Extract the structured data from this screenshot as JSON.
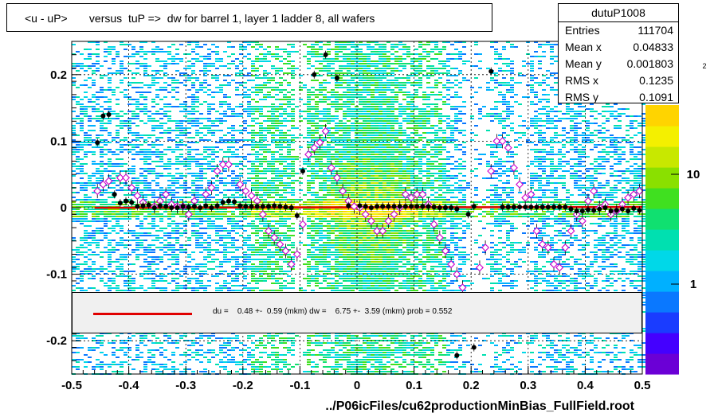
{
  "title": "<u - uP>       versus  tuP =>  dw for barrel 1, layer 1 ladder 8, all wafers",
  "stats": {
    "name": "dutuP1008",
    "rows": [
      {
        "k": "Entries",
        "v": "111704"
      },
      {
        "k": "Mean x",
        "v": "0.04833"
      },
      {
        "k": "Mean y",
        "v": "0.001803"
      },
      {
        "k": "RMS x",
        "v": "0.1235"
      },
      {
        "k": "RMS y",
        "v": "0.1091"
      }
    ]
  },
  "fit_text": "du =    0.48 +-  0.59 (mkm) dw =    6.75 +-  3.59 (mkm) prob = 0.552",
  "x_title": "../P06icFiles/cu62productionMinBias_FullField.root",
  "colors": {
    "fit": "#e00000",
    "profile": "#000000",
    "markers": "#cc00cc"
  },
  "chart_data": {
    "type": "heatmap",
    "xlim": [
      -0.5,
      0.5
    ],
    "ylim": [
      -0.25,
      0.25
    ],
    "x_ticks": [
      "-0.5",
      "-0.4",
      "-0.3",
      "-0.2",
      "-0.1",
      "0",
      "0.1",
      "0.2",
      "0.3",
      "0.4",
      "0.5"
    ],
    "y_ticks": [
      "-0.2",
      "-0.1",
      "0",
      "0.1",
      "0.2"
    ],
    "z_ticks": [
      "1",
      "10"
    ],
    "z_exp_label": "2",
    "grid": true,
    "fit_line": {
      "x": [
        -0.46,
        0.5
      ],
      "y": [
        0.0,
        0.001
      ]
    },
    "profile_points": [
      [
        -0.455,
        0.098
      ],
      [
        -0.445,
        0.138
      ],
      [
        -0.435,
        0.14
      ],
      [
        -0.425,
        0.02
      ],
      [
        -0.415,
        0.007
      ],
      [
        -0.405,
        0.01
      ],
      [
        -0.395,
        0.008
      ],
      [
        -0.385,
        0.002
      ],
      [
        -0.375,
        0.003
      ],
      [
        -0.365,
        0.004
      ],
      [
        -0.355,
        0.0
      ],
      [
        -0.345,
        0.003
      ],
      [
        -0.335,
        0.002
      ],
      [
        -0.325,
        0.0
      ],
      [
        -0.315,
        0.0
      ],
      [
        -0.305,
        0.002
      ],
      [
        -0.295,
        0.001
      ],
      [
        -0.285,
        0.002
      ],
      [
        -0.275,
        0.0
      ],
      [
        -0.265,
        0.003
      ],
      [
        -0.255,
        0.0
      ],
      [
        -0.245,
        0.003
      ],
      [
        -0.235,
        0.008
      ],
      [
        -0.225,
        0.01
      ],
      [
        -0.215,
        0.009
      ],
      [
        -0.205,
        0.003
      ],
      [
        -0.195,
        0.002
      ],
      [
        -0.185,
        0.002
      ],
      [
        -0.175,
        0.002
      ],
      [
        -0.165,
        0.002
      ],
      [
        -0.155,
        0.002
      ],
      [
        -0.145,
        0.003
      ],
      [
        -0.135,
        0.002
      ],
      [
        -0.125,
        0.001
      ],
      [
        -0.115,
        0.0
      ],
      [
        -0.105,
        -0.012
      ],
      [
        -0.095,
        0.055
      ],
      [
        -0.075,
        0.2
      ],
      [
        -0.055,
        0.23
      ],
      [
        -0.035,
        0.195
      ],
      [
        -0.015,
        0.003
      ],
      [
        0.005,
        0.003
      ],
      [
        0.015,
        0.002
      ],
      [
        0.025,
        0.0
      ],
      [
        0.035,
        0.002
      ],
      [
        0.045,
        0.002
      ],
      [
        0.055,
        0.002
      ],
      [
        0.065,
        0.002
      ],
      [
        0.075,
        0.002
      ],
      [
        0.085,
        0.002
      ],
      [
        0.095,
        0.002
      ],
      [
        0.105,
        0.002
      ],
      [
        0.115,
        0.002
      ],
      [
        0.125,
        0.002
      ],
      [
        0.135,
        0.001
      ],
      [
        0.145,
        0.0
      ],
      [
        0.155,
        0.0
      ],
      [
        0.165,
        0.0
      ],
      [
        0.175,
        -0.002
      ],
      [
        0.195,
        -0.01
      ],
      [
        0.205,
        0.002
      ],
      [
        0.235,
        0.205
      ],
      [
        0.255,
        0.001
      ],
      [
        0.265,
        0.001
      ],
      [
        0.275,
        0.001
      ],
      [
        0.285,
        0.001
      ],
      [
        0.295,
        0.001
      ],
      [
        0.305,
        0.001
      ],
      [
        0.315,
        0.001
      ],
      [
        0.325,
        0.001
      ],
      [
        0.335,
        0.001
      ],
      [
        0.345,
        0.001
      ],
      [
        0.355,
        0.001
      ],
      [
        0.365,
        0.001
      ],
      [
        0.375,
        -0.002
      ],
      [
        0.385,
        -0.005
      ],
      [
        0.395,
        -0.005
      ],
      [
        0.405,
        -0.003
      ],
      [
        0.415,
        -0.004
      ],
      [
        0.425,
        -0.002
      ],
      [
        0.435,
        0.0
      ],
      [
        0.445,
        -0.005
      ],
      [
        0.455,
        -0.004
      ],
      [
        0.465,
        -0.002
      ],
      [
        0.475,
        -0.005
      ],
      [
        0.485,
        -0.001
      ],
      [
        0.495,
        -0.004
      ],
      [
        0.175,
        -0.222
      ],
      [
        0.205,
        -0.21
      ]
    ],
    "marker_points": [
      [
        -0.455,
        0.025
      ],
      [
        -0.445,
        0.035
      ],
      [
        -0.435,
        0.04
      ],
      [
        -0.415,
        0.045
      ],
      [
        -0.405,
        0.045
      ],
      [
        -0.395,
        0.03
      ],
      [
        -0.385,
        0.018
      ],
      [
        -0.375,
        0.008
      ],
      [
        -0.355,
        0.002
      ],
      [
        -0.345,
        0.01
      ],
      [
        -0.335,
        0.02
      ],
      [
        -0.325,
        0.005
      ],
      [
        -0.315,
        0.002
      ],
      [
        -0.305,
        0.002
      ],
      [
        -0.295,
        -0.01
      ],
      [
        -0.285,
        0.01
      ],
      [
        -0.265,
        0.02
      ],
      [
        -0.255,
        0.03
      ],
      [
        -0.245,
        0.055
      ],
      [
        -0.235,
        0.065
      ],
      [
        -0.225,
        0.065
      ],
      [
        -0.205,
        0.035
      ],
      [
        -0.195,
        0.025
      ],
      [
        -0.185,
        0.018
      ],
      [
        -0.175,
        0.01
      ],
      [
        -0.165,
        -0.01
      ],
      [
        -0.155,
        -0.035
      ],
      [
        -0.145,
        -0.045
      ],
      [
        -0.135,
        -0.055
      ],
      [
        -0.125,
        -0.065
      ],
      [
        -0.115,
        -0.085
      ],
      [
        -0.105,
        -0.07
      ],
      [
        -0.095,
        -0.025
      ],
      [
        -0.085,
        0.08
      ],
      [
        -0.075,
        0.09
      ],
      [
        -0.065,
        0.098
      ],
      [
        -0.055,
        0.115
      ],
      [
        -0.045,
        0.06
      ],
      [
        -0.035,
        0.045
      ],
      [
        -0.025,
        0.025
      ],
      [
        -0.015,
        0.01
      ],
      [
        -0.005,
        0.002
      ],
      [
        0.005,
        0.0
      ],
      [
        0.015,
        -0.01
      ],
      [
        0.025,
        -0.02
      ],
      [
        0.035,
        -0.035
      ],
      [
        0.045,
        -0.035
      ],
      [
        0.055,
        -0.02
      ],
      [
        0.065,
        -0.01
      ],
      [
        0.075,
        0.0
      ],
      [
        0.085,
        0.02
      ],
      [
        0.095,
        0.015
      ],
      [
        0.105,
        0.02
      ],
      [
        0.115,
        0.02
      ],
      [
        0.125,
        0.005
      ],
      [
        0.135,
        -0.025
      ],
      [
        0.145,
        -0.045
      ],
      [
        0.155,
        -0.065
      ],
      [
        0.165,
        -0.085
      ],
      [
        0.175,
        -0.1
      ],
      [
        0.185,
        -0.12
      ],
      [
        0.195,
        -0.14
      ],
      [
        0.205,
        -0.14
      ],
      [
        0.215,
        -0.09
      ],
      [
        0.225,
        -0.06
      ],
      [
        0.235,
        0.055
      ],
      [
        0.245,
        0.1
      ],
      [
        0.255,
        0.1
      ],
      [
        0.265,
        0.09
      ],
      [
        0.275,
        0.06
      ],
      [
        0.285,
        0.035
      ],
      [
        0.295,
        0.015
      ],
      [
        0.305,
        0.02
      ],
      [
        0.315,
        -0.035
      ],
      [
        0.325,
        -0.055
      ],
      [
        0.335,
        -0.06
      ],
      [
        0.345,
        -0.085
      ],
      [
        0.355,
        -0.09
      ],
      [
        0.365,
        -0.06
      ],
      [
        0.375,
        -0.035
      ],
      [
        0.385,
        -0.01
      ],
      [
        0.395,
        -0.02
      ],
      [
        0.405,
        0.01
      ],
      [
        0.415,
        0.025
      ],
      [
        0.425,
        0.0
      ],
      [
        0.435,
        0.005
      ],
      [
        0.445,
        -0.01
      ],
      [
        0.455,
        -0.005
      ],
      [
        0.465,
        0.005
      ],
      [
        0.475,
        0.015
      ],
      [
        0.485,
        0.02
      ],
      [
        0.495,
        0.025
      ]
    ]
  }
}
